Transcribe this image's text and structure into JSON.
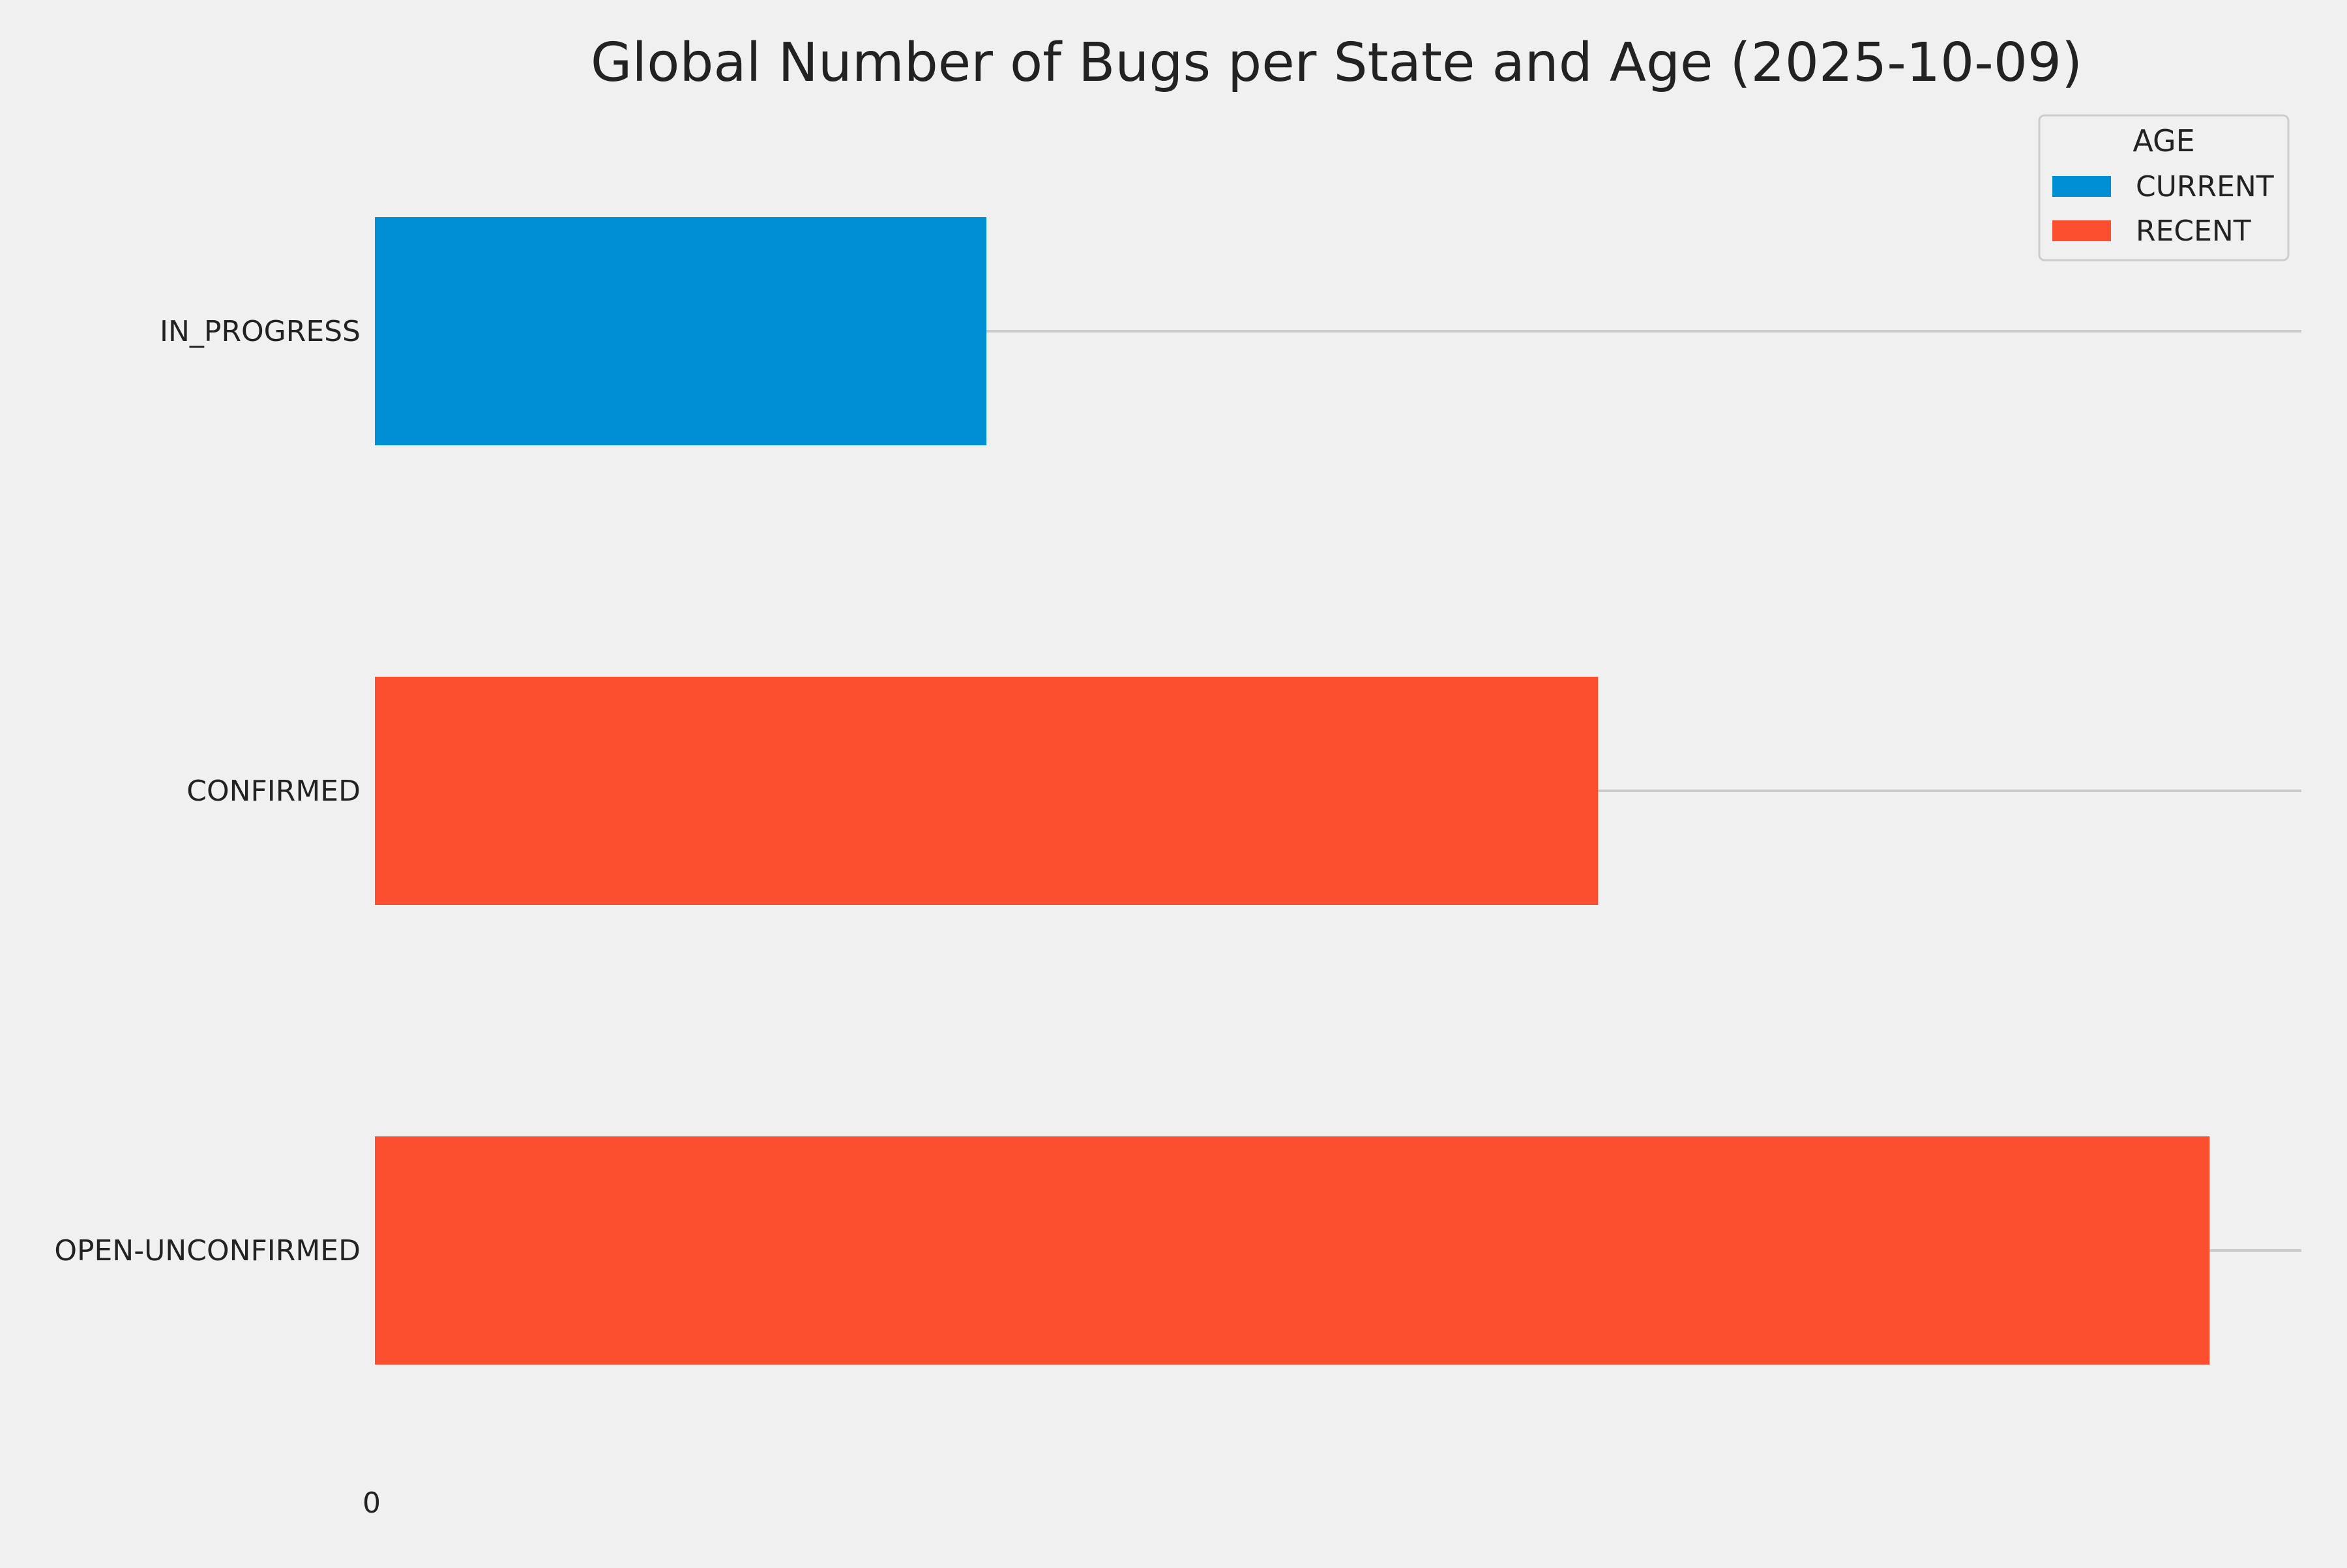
{
  "chart_data": {
    "type": "bar",
    "orientation": "horizontal",
    "title": "Global Number of Bugs per State and Age (2025-10-09)",
    "xlabel": "",
    "ylabel": "",
    "categories": [
      "IN_PROGRESS",
      "CONFIRMED",
      "OPEN-UNCONFIRMED"
    ],
    "bars": [
      {
        "category": "IN_PROGRESS",
        "series": "CURRENT",
        "value": 1
      },
      {
        "category": "CONFIRMED",
        "series": "RECENT",
        "value": 2
      },
      {
        "category": "OPEN-UNCONFIRMED",
        "series": "RECENT",
        "value": 3
      }
    ],
    "series": [
      {
        "name": "CURRENT",
        "color": "#008fd5"
      },
      {
        "name": "RECENT",
        "color": "#fc4f30"
      }
    ],
    "xlim": [
      0,
      3.15
    ],
    "x_ticks": [
      0
    ],
    "x_tick_labels": [
      "0"
    ],
    "grid": {
      "x": false,
      "y": true,
      "color": "#cbcbcb"
    },
    "legend": {
      "title": "AGE",
      "position": "upper right"
    },
    "background_color": "#f0f0f0"
  }
}
